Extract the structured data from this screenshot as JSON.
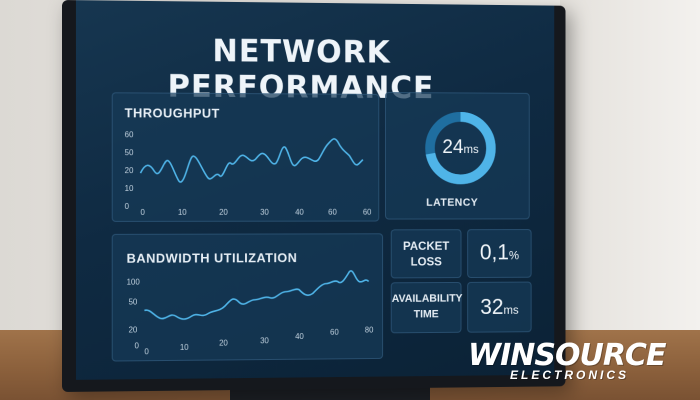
{
  "dashboard": {
    "title": "NETWORK PERFORMANCE",
    "throughput": {
      "title": "THROUGHPUT",
      "y_ticks": [
        "60",
        "50",
        "20",
        "10",
        "0"
      ],
      "x_ticks": [
        "0",
        "10",
        "20",
        "30",
        "40",
        "60",
        "60"
      ]
    },
    "latency": {
      "value": "24",
      "unit": "ms",
      "label": "LATENCY",
      "fill_fraction": 0.72
    },
    "bandwidth": {
      "title": "BANDWIDTH UTILIZATION",
      "y_ticks": [
        "100",
        "50",
        "20",
        "0"
      ],
      "x_ticks": [
        "0",
        "10",
        "20",
        "30",
        "40",
        "60",
        "80"
      ]
    },
    "packet_loss": {
      "label_line1": "PACKET",
      "label_line2": "LOSS",
      "value": "0,1",
      "unit": "%"
    },
    "availability": {
      "label_line1": "AVAILABILITY",
      "label_line2": "TIME",
      "value": "32",
      "unit": "ms"
    }
  },
  "watermark": {
    "brand": "WINSOURCE",
    "sub": "ELECTRONICS"
  },
  "colors": {
    "accent": "#4fb4e8",
    "screen_bg": "#0f2a42",
    "panel_bg": "#163a58"
  }
}
